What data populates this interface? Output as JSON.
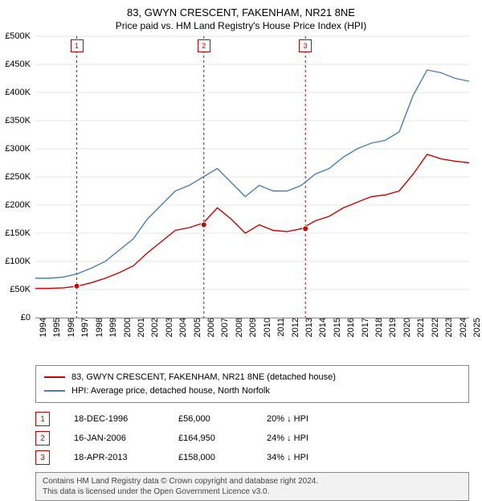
{
  "title": "83, GWYN CRESCENT, FAKENHAM, NR21 8NE",
  "subtitle": "Price paid vs. HM Land Registry's House Price Index (HPI)",
  "chart": {
    "type": "line",
    "background_color": "#ffffff",
    "grid_color": "#e6e6e6",
    "xlim": [
      1994,
      2025
    ],
    "ylim": [
      0,
      500000
    ],
    "ytick_step": 50000,
    "ytick_labels": [
      "£0",
      "£50K",
      "£100K",
      "£150K",
      "£200K",
      "£250K",
      "£300K",
      "£350K",
      "£400K",
      "£450K",
      "£500K"
    ],
    "xtick_step": 1,
    "xtick_labels": [
      "1994",
      "1995",
      "1996",
      "1997",
      "1998",
      "1999",
      "2000",
      "2001",
      "2002",
      "2003",
      "2004",
      "2005",
      "2006",
      "2007",
      "2008",
      "2009",
      "2010",
      "2011",
      "2012",
      "2013",
      "2014",
      "2015",
      "2016",
      "2017",
      "2018",
      "2019",
      "2020",
      "2021",
      "2022",
      "2023",
      "2024",
      "2025"
    ],
    "title_fontsize": 13,
    "label_fontsize": 11,
    "series": [
      {
        "name": "83, GWYN CRESCENT, FAKENHAM, NR21 8NE (detached house)",
        "color": "#cc0000",
        "line_width": 1.4,
        "x": [
          1994,
          1995,
          1996,
          1997,
          1998,
          1999,
          2000,
          2001,
          2002,
          2003,
          2004,
          2005,
          2006,
          2007,
          2008,
          2009,
          2010,
          2011,
          2012,
          2013,
          2014,
          2015,
          2016,
          2017,
          2018,
          2019,
          2020,
          2021,
          2022,
          2023,
          2024,
          2025
        ],
        "y": [
          52000,
          52000,
          53000,
          56000,
          62000,
          70000,
          80000,
          92000,
          115000,
          135000,
          155000,
          160000,
          168000,
          195000,
          175000,
          150000,
          165000,
          155000,
          153000,
          158000,
          172000,
          180000,
          195000,
          205000,
          215000,
          218000,
          225000,
          255000,
          290000,
          282000,
          278000,
          275000
        ]
      },
      {
        "name": "HPI: Average price, detached house, North Norfolk",
        "color": "#4a7ebb",
        "line_width": 1.4,
        "x": [
          1994,
          1995,
          1996,
          1997,
          1998,
          1999,
          2000,
          2001,
          2002,
          2003,
          2004,
          2005,
          2006,
          2007,
          2008,
          2009,
          2010,
          2011,
          2012,
          2013,
          2014,
          2015,
          2016,
          2017,
          2018,
          2019,
          2020,
          2021,
          2022,
          2023,
          2024,
          2025
        ],
        "y": [
          70000,
          70000,
          72000,
          78000,
          88000,
          100000,
          120000,
          140000,
          175000,
          200000,
          225000,
          235000,
          250000,
          265000,
          240000,
          215000,
          235000,
          225000,
          225000,
          235000,
          255000,
          265000,
          285000,
          300000,
          310000,
          315000,
          330000,
          395000,
          440000,
          435000,
          425000,
          420000
        ]
      }
    ],
    "vlines": [
      {
        "x": 1996.96,
        "label": "1",
        "color": "#cc0000"
      },
      {
        "x": 2006.04,
        "label": "2",
        "color": "#cc0000"
      },
      {
        "x": 2013.3,
        "label": "3",
        "color": "#cc0000"
      }
    ],
    "sale_points": [
      {
        "x": 1996.96,
        "y": 56000
      },
      {
        "x": 2006.04,
        "y": 164950
      },
      {
        "x": 2013.3,
        "y": 158000
      }
    ],
    "point_marker_color": "#cc0000",
    "vline_dash": "3,3"
  },
  "legend": {
    "items": [
      {
        "label": "83, GWYN CRESCENT, FAKENHAM, NR21 8NE (detached house)",
        "color": "#cc0000"
      },
      {
        "label": "HPI: Average price, detached house, North Norfolk",
        "color": "#4a7ebb"
      }
    ]
  },
  "markers": [
    {
      "n": "1",
      "date": "18-DEC-1996",
      "price": "£56,000",
      "pct": "20% ↓ HPI"
    },
    {
      "n": "2",
      "date": "16-JAN-2006",
      "price": "£164,950",
      "pct": "24% ↓ HPI"
    },
    {
      "n": "3",
      "date": "18-APR-2013",
      "price": "£158,000",
      "pct": "34% ↓ HPI"
    }
  ],
  "footer": {
    "line1": "Contains HM Land Registry data © Crown copyright and database right 2024.",
    "line2": "This data is licensed under the Open Government Licence v3.0."
  }
}
